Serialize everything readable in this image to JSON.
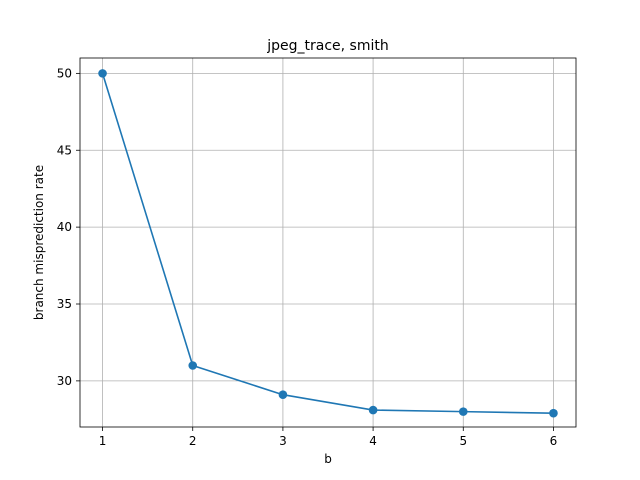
{
  "chart_data": {
    "type": "line",
    "title": "jpeg_trace, smith",
    "xlabel": "b",
    "ylabel": "branch misprediction rate",
    "x": [
      1,
      2,
      3,
      4,
      5,
      6
    ],
    "series": [
      {
        "values": [
          50.0,
          31.0,
          29.1,
          28.1,
          28.0,
          27.9
        ]
      }
    ],
    "xlim": [
      0.75,
      6.25
    ],
    "ylim": [
      27.0,
      51.0
    ],
    "xticks": [
      1,
      2,
      3,
      4,
      5,
      6
    ],
    "yticks": [
      30,
      35,
      40,
      45,
      50
    ],
    "grid": true,
    "markers": true,
    "line_color": "#1f77b4"
  }
}
